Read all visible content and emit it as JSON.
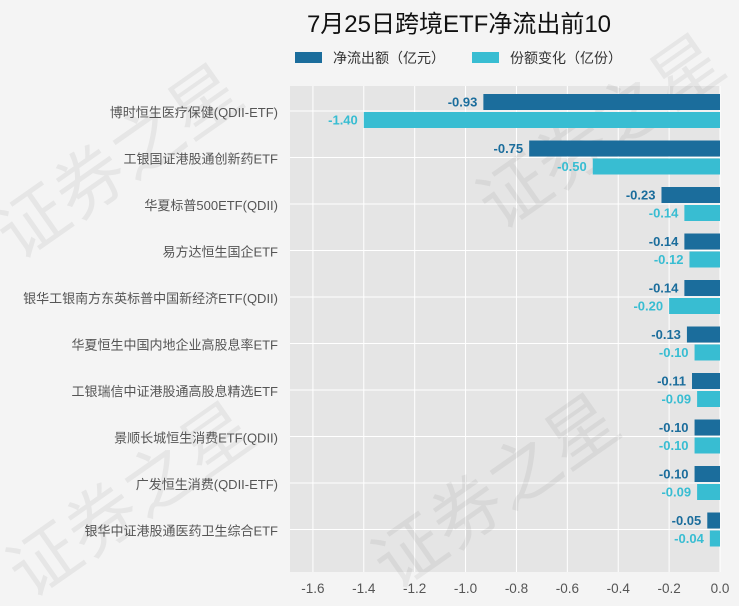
{
  "watermark": "证券之星",
  "colors": {
    "page_background": "#f4f4f4",
    "plot_background": "#e5e5e5",
    "net_outflow": "#1b6d9c",
    "share_change": "#38bdd2"
  },
  "chart_data": {
    "type": "bar",
    "orientation": "horizontal",
    "title": "7月25日跨境ETF净流出前10",
    "categories": [
      "博时恒生医疗保健(QDII-ETF)",
      "工银国证港股通创新药ETF",
      "华夏标普500ETF(QDII)",
      "易方达恒生国企ETF",
      "银华工银南方东英标普中国新经济ETF(QDII)",
      "华夏恒生中国内地企业高股息率ETF",
      "工银瑞信中证港股通高股息精选ETF",
      "景顺长城恒生消费ETF(QDII)",
      "广发恒生消费(QDII-ETF)",
      "银华中证港股通医药卫生综合ETF"
    ],
    "series": [
      {
        "name": "净流出额（亿元）",
        "color": "#1b6d9c",
        "values": [
          -0.93,
          -0.75,
          -0.23,
          -0.14,
          -0.14,
          -0.13,
          -0.11,
          -0.1,
          -0.1,
          -0.05
        ]
      },
      {
        "name": "份额变化（亿份）",
        "color": "#38bdd2",
        "values": [
          -1.4,
          -0.5,
          -0.14,
          -0.12,
          -0.2,
          -0.1,
          -0.09,
          -0.1,
          -0.09,
          -0.04
        ]
      }
    ],
    "xlabel": "",
    "ylabel": "",
    "xlim": [
      -1.69,
      0.0
    ],
    "xticks": [
      -1.6,
      -1.4,
      -1.2,
      -1.0,
      -0.8,
      -0.6,
      -0.4,
      -0.2,
      0.0
    ],
    "grid": true,
    "legend": "top"
  }
}
